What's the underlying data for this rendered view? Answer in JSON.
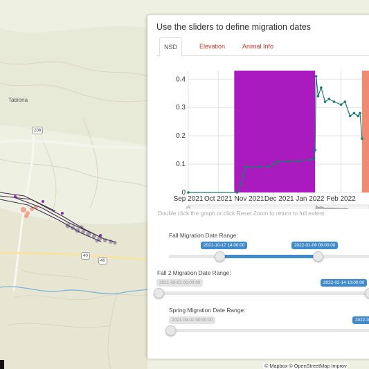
{
  "map": {
    "town_label": "Tabiona",
    "road_shields": [
      "208",
      "40",
      "40"
    ],
    "attribution": "© Mapbox © OpenStreetMap Improv"
  },
  "panel": {
    "title": "Use the sliders to define migration dates",
    "tabs": [
      {
        "label": "NSD",
        "active": true
      },
      {
        "label": "Elevation",
        "active": false
      },
      {
        "label": "Animal Info",
        "active": false
      }
    ],
    "hint": "Double click the graph or click Reset Zoom to return to full extent."
  },
  "sliders": [
    {
      "label": "Fall Migration Date Range:",
      "start": "2021-10-17 14:00:00",
      "end": "2022-01-06 08:00:00"
    },
    {
      "label": "Fall 2 Migration Date Range:",
      "start": "2021-09-01 00:00:00",
      "end": "2022-02-14 10:00:00"
    },
    {
      "label": "Spring Migration Date Range:",
      "start": "2021-09-01 00:00:00",
      "end": "2022-0"
    }
  ],
  "colors": {
    "fall_band": "#a91bbf",
    "spring_band": "#f08a72",
    "series": "#1f7a6e",
    "slider_accent": "#428bca",
    "tab_red": "#c0392b"
  },
  "chart_data": {
    "type": "line",
    "ylim": [
      0,
      0.43
    ],
    "xlim": [
      "2021-09-01",
      "2022-03-01"
    ],
    "y_ticks": [
      "0",
      "0.1",
      "0.2",
      "0.3",
      "0.4"
    ],
    "x_ticks": [
      "Sep 2021",
      "Oct 2021",
      "Nov 2021",
      "Dec 2021",
      "Jan 2022",
      "Feb 2022"
    ],
    "bands": [
      {
        "name": "Fall migration",
        "start": "2021-10-17",
        "end": "2022-01-06",
        "color": "#a91bbf"
      },
      {
        "name": "Spring migration",
        "start": "2022-02-22",
        "end": "2022-03-01",
        "color": "#f08a72"
      }
    ],
    "series": [
      {
        "x": [
          "2021-09-01",
          "2021-10-20",
          "2021-10-24",
          "2021-10-26",
          "2021-10-28",
          "2021-11-01",
          "2021-11-10",
          "2021-11-20",
          "2021-11-26",
          "2021-11-30",
          "2021-12-10",
          "2021-12-20",
          "2022-01-01",
          "2022-01-05",
          "2022-01-06",
          "2022-01-07",
          "2022-01-09",
          "2022-01-12",
          "2022-01-16",
          "2022-01-20",
          "2022-01-25",
          "2022-02-01",
          "2022-02-05",
          "2022-02-10",
          "2022-02-14",
          "2022-02-18",
          "2022-02-20",
          "2022-02-22"
        ],
        "y": [
          0.0,
          0.0,
          0.03,
          0.06,
          0.09,
          0.09,
          0.09,
          0.09,
          0.1,
          0.11,
          0.11,
          0.11,
          0.115,
          0.12,
          0.15,
          0.41,
          0.34,
          0.37,
          0.32,
          0.33,
          0.32,
          0.31,
          0.32,
          0.27,
          0.28,
          0.27,
          0.28,
          0.19
        ]
      }
    ]
  }
}
